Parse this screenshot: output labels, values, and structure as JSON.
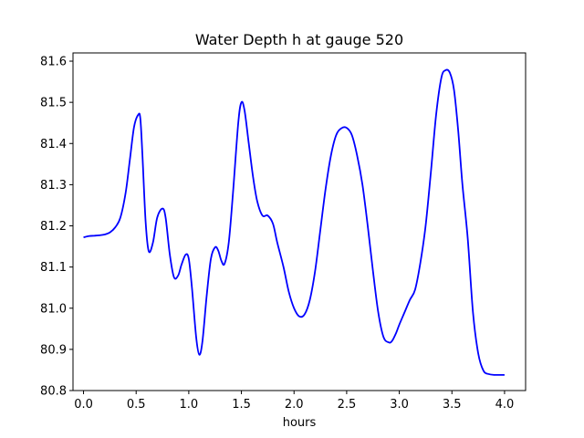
{
  "chart_data": {
    "type": "line",
    "title": "Water Depth h at gauge 520",
    "xlabel": "hours",
    "ylabel": "",
    "xlim": [
      -0.1,
      4.2
    ],
    "ylim": [
      80.8,
      81.62
    ],
    "xticks": [
      0.0,
      0.5,
      1.0,
      1.5,
      2.0,
      2.5,
      3.0,
      3.5,
      4.0
    ],
    "xtick_labels": [
      "0.0",
      "0.5",
      "1.0",
      "1.5",
      "2.0",
      "2.5",
      "3.0",
      "3.5",
      "4.0"
    ],
    "yticks": [
      80.8,
      80.9,
      81.0,
      81.1,
      81.2,
      81.3,
      81.4,
      81.5,
      81.6
    ],
    "ytick_labels": [
      "80.8",
      "80.9",
      "81.0",
      "81.1",
      "81.2",
      "81.3",
      "81.4",
      "81.5",
      "81.6"
    ],
    "grid": false,
    "line_color": "#0000ff",
    "series": [
      {
        "x": [
          0.0,
          0.05,
          0.1,
          0.15,
          0.2,
          0.25,
          0.3,
          0.35,
          0.4,
          0.44,
          0.48,
          0.52,
          0.54,
          0.56,
          0.59,
          0.62,
          0.66,
          0.7,
          0.75,
          0.78,
          0.82,
          0.86,
          0.9,
          0.93,
          0.97,
          1.0,
          1.03,
          1.07,
          1.1,
          1.13,
          1.17,
          1.21,
          1.25,
          1.28,
          1.31,
          1.34,
          1.38,
          1.42,
          1.47,
          1.5,
          1.53,
          1.57,
          1.61,
          1.65,
          1.7,
          1.75,
          1.8,
          1.84,
          1.9,
          1.95,
          2.0,
          2.05,
          2.1,
          2.15,
          2.2,
          2.25,
          2.3,
          2.35,
          2.4,
          2.45,
          2.5,
          2.55,
          2.6,
          2.65,
          2.7,
          2.75,
          2.8,
          2.85,
          2.9,
          2.93,
          2.97,
          3.0,
          3.05,
          3.1,
          3.15,
          3.2,
          3.25,
          3.3,
          3.35,
          3.4,
          3.44,
          3.48,
          3.52,
          3.56,
          3.6,
          3.65,
          3.7,
          3.75,
          3.8,
          3.85,
          3.9,
          3.95,
          4.0
        ],
        "values": [
          81.172,
          81.175,
          81.176,
          81.177,
          81.179,
          81.184,
          81.196,
          81.22,
          81.28,
          81.36,
          81.44,
          81.47,
          81.46,
          81.37,
          81.21,
          81.138,
          81.16,
          81.22,
          81.242,
          81.22,
          81.13,
          81.075,
          81.08,
          81.105,
          81.13,
          81.12,
          81.05,
          80.93,
          80.887,
          80.92,
          81.03,
          81.12,
          81.148,
          81.14,
          81.115,
          81.108,
          81.16,
          81.28,
          81.45,
          81.5,
          81.48,
          81.4,
          81.32,
          81.26,
          81.225,
          81.225,
          81.205,
          81.16,
          81.1,
          81.04,
          81.0,
          80.98,
          80.985,
          81.02,
          81.09,
          81.19,
          81.29,
          81.37,
          81.42,
          81.437,
          81.438,
          81.42,
          81.37,
          81.3,
          81.2,
          81.09,
          80.99,
          80.93,
          80.917,
          80.92,
          80.94,
          80.96,
          80.99,
          81.02,
          81.045,
          81.11,
          81.2,
          81.33,
          81.47,
          81.56,
          81.578,
          81.572,
          81.53,
          81.43,
          81.3,
          81.17,
          80.99,
          80.89,
          80.848,
          80.84,
          80.838,
          80.838,
          80.838
        ]
      }
    ]
  }
}
